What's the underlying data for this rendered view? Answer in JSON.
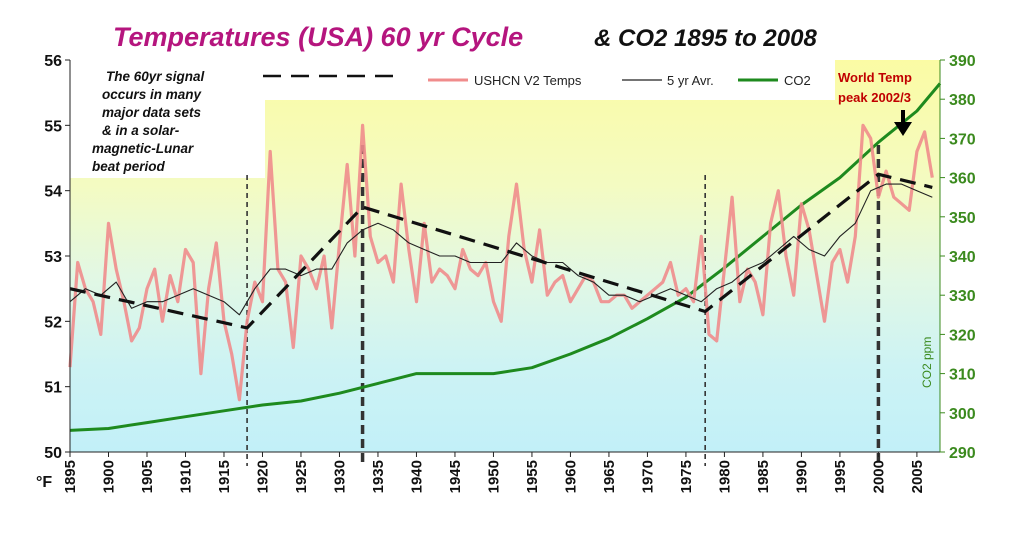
{
  "chart_data": {
    "type": "line",
    "title": "Temperatures (USA) 60 yr Cycle",
    "subtitle": "& CO2 1895 to 2008",
    "x_ticks": [
      "1895",
      "1900",
      "1905",
      "1910",
      "1915",
      "1920",
      "1925",
      "1930",
      "1935",
      "1940",
      "1945",
      "1950",
      "1955",
      "1960",
      "1965",
      "1970",
      "1975",
      "1980",
      "1985",
      "1990",
      "1995",
      "2000",
      "2005"
    ],
    "xlim": [
      1895,
      2008
    ],
    "y_left": {
      "unit_label": "°F",
      "lim": [
        50,
        56
      ],
      "ticks": [
        "50",
        "51",
        "52",
        "53",
        "54",
        "55",
        "56"
      ]
    },
    "y_right": {
      "label": "CO2 ppm",
      "lim": [
        290,
        390
      ],
      "ticks": [
        "290",
        "300",
        "310",
        "320",
        "330",
        "340",
        "350",
        "360",
        "370",
        "380",
        "390"
      ]
    },
    "legend": {
      "position": "top",
      "entries": [
        "USHCN V2 Temps",
        "5 yr Avr.",
        "CO2"
      ]
    },
    "grid": false,
    "colors": {
      "temps": "#f08c8c",
      "avg": "#222222",
      "co2": "#1e8a1e",
      "title": "#b5157e",
      "right_axis": "#3b8a1e",
      "peak": "#c00000"
    },
    "annotations": {
      "note_lines": [
        "The 60yr signal",
        "occurs in many",
        "major data sets",
        "& in a solar-",
        "magnetic-Lunar",
        "beat period"
      ],
      "peak_lines": [
        "World Temp",
        "peak 2002/3"
      ]
    },
    "vertical_markers": [
      {
        "x": 1918,
        "style": "short-dash"
      },
      {
        "x": 1933,
        "style": "bold-dash"
      },
      {
        "x": 1977.5,
        "style": "short-dash"
      },
      {
        "x": 2000,
        "style": "bold-dash"
      }
    ],
    "trend_dashed": {
      "x": [
        1895,
        1918,
        1933,
        1977.5,
        2000,
        2007
      ],
      "y": [
        52.5,
        51.9,
        53.75,
        52.15,
        54.25,
        54.05
      ]
    },
    "series": [
      {
        "name": "USHCN V2 Temps",
        "x": [
          1895,
          1896,
          1897,
          1898,
          1899,
          1900,
          1901,
          1902,
          1903,
          1904,
          1905,
          1906,
          1907,
          1908,
          1909,
          1910,
          1911,
          1912,
          1913,
          1914,
          1915,
          1916,
          1917,
          1918,
          1919,
          1920,
          1921,
          1922,
          1923,
          1924,
          1925,
          1926,
          1927,
          1928,
          1929,
          1930,
          1931,
          1932,
          1933,
          1934,
          1935,
          1936,
          1937,
          1938,
          1939,
          1940,
          1941,
          1942,
          1943,
          1944,
          1945,
          1946,
          1947,
          1948,
          1949,
          1950,
          1951,
          1952,
          1953,
          1954,
          1955,
          1956,
          1957,
          1958,
          1959,
          1960,
          1961,
          1962,
          1963,
          1964,
          1965,
          1966,
          1967,
          1968,
          1969,
          1970,
          1971,
          1972,
          1973,
          1974,
          1975,
          1976,
          1977,
          1978,
          1979,
          1980,
          1981,
          1982,
          1983,
          1984,
          1985,
          1986,
          1987,
          1988,
          1989,
          1990,
          1991,
          1992,
          1993,
          1994,
          1995,
          1996,
          1997,
          1998,
          1999,
          2000,
          2001,
          2002,
          2003,
          2004,
          2005,
          2006,
          2007
        ],
        "y": [
          51.3,
          52.9,
          52.5,
          52.3,
          51.8,
          53.5,
          52.8,
          52.3,
          51.7,
          51.9,
          52.5,
          52.8,
          52.0,
          52.7,
          52.3,
          53.1,
          52.9,
          51.2,
          52.5,
          53.2,
          52.0,
          51.5,
          50.8,
          52.0,
          52.6,
          52.3,
          54.6,
          52.8,
          52.6,
          51.6,
          53.0,
          52.8,
          52.5,
          53.0,
          51.9,
          53.2,
          54.4,
          53.0,
          55.0,
          53.3,
          52.9,
          53.0,
          52.6,
          54.1,
          53.1,
          52.3,
          53.5,
          52.6,
          52.8,
          52.7,
          52.5,
          53.1,
          52.8,
          52.7,
          52.9,
          52.3,
          52.0,
          53.3,
          54.1,
          53.1,
          52.6,
          53.4,
          52.4,
          52.6,
          52.7,
          52.3,
          52.5,
          52.7,
          52.6,
          52.3,
          52.3,
          52.4,
          52.4,
          52.2,
          52.3,
          52.4,
          52.5,
          52.6,
          52.9,
          52.4,
          52.5,
          52.3,
          53.3,
          51.8,
          51.7,
          52.8,
          53.9,
          52.3,
          52.8,
          52.6,
          52.1,
          53.5,
          54.0,
          53.0,
          52.4,
          53.8,
          53.4,
          52.7,
          52.0,
          52.9,
          53.1,
          52.6,
          53.3,
          55.0,
          54.8,
          53.9,
          54.3,
          53.9,
          53.8,
          53.7,
          54.6,
          54.9,
          54.2
        ]
      },
      {
        "name": "5 yr Avr.",
        "x": [
          1895,
          1897,
          1899,
          1901,
          1903,
          1905,
          1907,
          1909,
          1911,
          1913,
          1915,
          1917,
          1919,
          1921,
          1923,
          1925,
          1927,
          1929,
          1931,
          1933,
          1935,
          1937,
          1939,
          1941,
          1943,
          1945,
          1947,
          1949,
          1951,
          1953,
          1955,
          1957,
          1959,
          1961,
          1963,
          1965,
          1967,
          1969,
          1971,
          1973,
          1975,
          1977,
          1979,
          1981,
          1983,
          1985,
          1987,
          1989,
          1991,
          1993,
          1995,
          1997,
          1999,
          2001,
          2003,
          2005,
          2007
        ],
        "y": [
          52.3,
          52.5,
          52.4,
          52.6,
          52.2,
          52.3,
          52.3,
          52.4,
          52.5,
          52.4,
          52.3,
          52.1,
          52.5,
          52.8,
          52.8,
          52.7,
          52.8,
          52.8,
          53.2,
          53.4,
          53.5,
          53.4,
          53.2,
          53.1,
          53.0,
          53.0,
          52.9,
          52.9,
          52.9,
          53.2,
          53.0,
          52.9,
          52.9,
          52.7,
          52.6,
          52.4,
          52.4,
          52.3,
          52.4,
          52.5,
          52.4,
          52.3,
          52.5,
          52.6,
          52.8,
          52.9,
          53.1,
          53.3,
          53.1,
          53.0,
          53.3,
          53.5,
          54.0,
          54.1,
          54.1,
          54.0,
          53.9
        ]
      },
      {
        "name": "CO2",
        "x": [
          1895,
          1900,
          1905,
          1910,
          1915,
          1920,
          1925,
          1930,
          1935,
          1940,
          1945,
          1950,
          1955,
          1960,
          1965,
          1970,
          1975,
          1980,
          1985,
          1990,
          1995,
          2000,
          2005,
          2008
        ],
        "y": [
          295.5,
          296,
          297.5,
          299,
          300.5,
          302,
          303,
          305,
          307.5,
          310,
          310,
          310,
          311.5,
          315,
          319,
          324,
          329.5,
          337,
          345,
          353,
          360,
          369,
          377,
          384
        ]
      }
    ]
  }
}
